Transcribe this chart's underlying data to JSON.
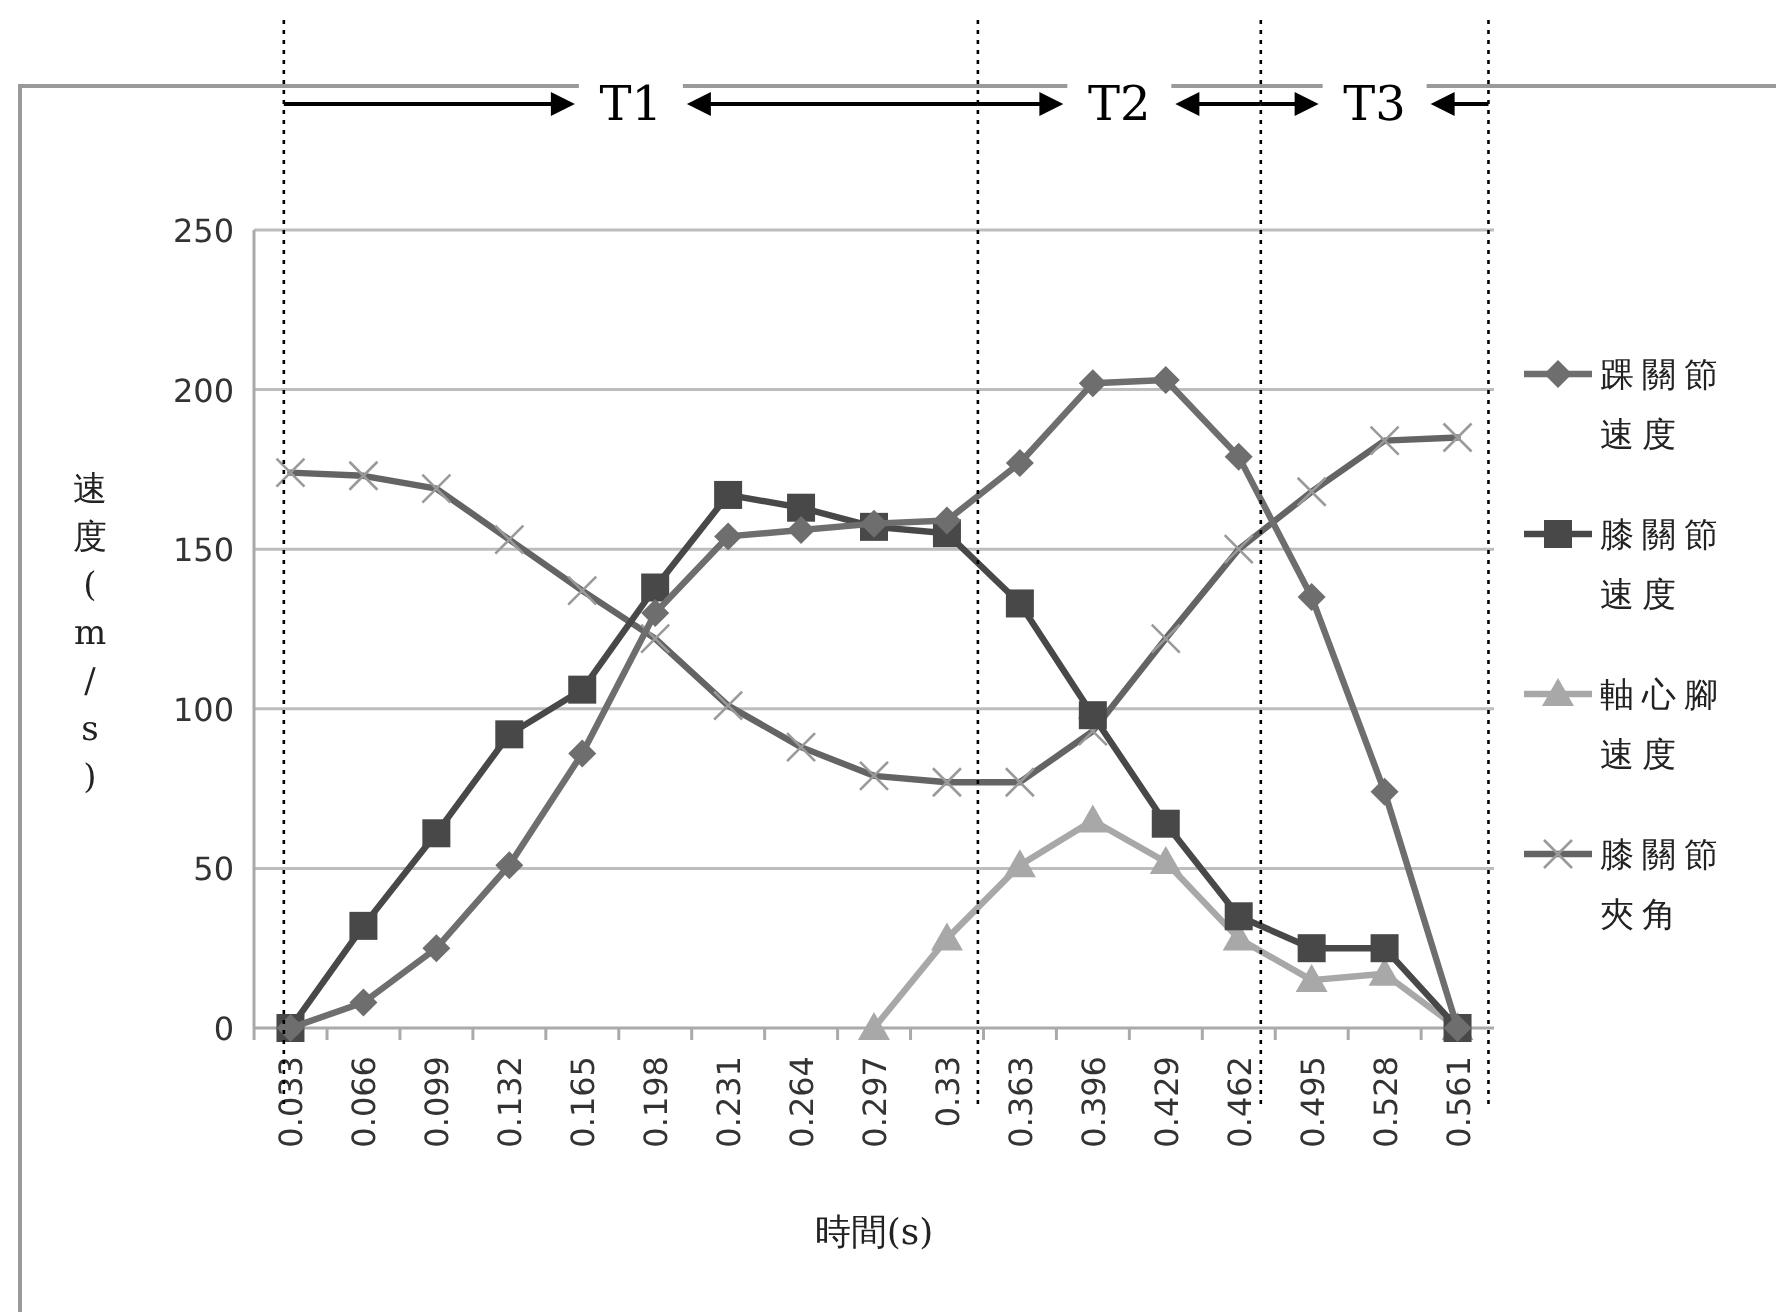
{
  "chart_data": {
    "type": "line",
    "xlabel": "時間(s)",
    "ylabel": "速度(m/s)",
    "x": [
      0.033,
      0.066,
      0.099,
      0.132,
      0.165,
      0.198,
      0.231,
      0.264,
      0.297,
      0.33,
      0.363,
      0.396,
      0.429,
      0.462,
      0.495,
      0.528,
      0.561
    ],
    "xlim": [
      0.0165,
      0.5775
    ],
    "xticks": [
      0.033,
      0.066,
      0.099,
      0.132,
      0.165,
      0.198,
      0.231,
      0.264,
      0.297,
      0.33,
      0.363,
      0.396,
      0.429,
      0.462,
      0.495,
      0.528,
      0.561
    ],
    "ylim": [
      0,
      250
    ],
    "yticks": [
      0,
      50,
      100,
      150,
      200,
      250
    ],
    "grid": "y",
    "legend": "right",
    "series": [
      {
        "name": "踝關節速度",
        "color": "#6e6e6e",
        "marker": "diamond",
        "values": [
          0,
          8,
          25,
          51,
          86,
          130,
          154,
          156,
          158,
          159,
          177,
          202,
          203,
          179,
          135,
          74,
          0
        ]
      },
      {
        "name": "膝關節速度",
        "color": "#484848",
        "marker": "square",
        "values": [
          0,
          32,
          61,
          92,
          106,
          138,
          167,
          163,
          157,
          155,
          133,
          98,
          64,
          35,
          25,
          25,
          0
        ]
      },
      {
        "name": "軸心腳速度",
        "color": "#a8a8a8",
        "marker": "triangle",
        "values": [
          null,
          null,
          null,
          null,
          null,
          null,
          null,
          null,
          0,
          28,
          51,
          65,
          52,
          28,
          15,
          17,
          0
        ]
      },
      {
        "name": "膝關節夾角",
        "color": "#646464",
        "marker": "cross",
        "values": [
          174,
          173,
          169,
          153,
          137,
          122,
          101,
          88,
          79,
          77,
          77,
          93,
          122,
          150,
          168,
          184,
          185
        ]
      }
    ],
    "ref_lines": [
      {
        "axis": "x",
        "value": 0.03,
        "line_style": "dotted",
        "color": "#000000"
      },
      {
        "axis": "x",
        "value": 0.344,
        "line_style": "dotted",
        "color": "#000000"
      },
      {
        "axis": "x",
        "value": 0.472,
        "line_style": "dotted",
        "color": "#000000"
      },
      {
        "axis": "x",
        "value": 0.575,
        "line_style": "dotted",
        "color": "#000000"
      }
    ],
    "annotations": [
      "T1",
      "T2",
      "T3"
    ]
  }
}
